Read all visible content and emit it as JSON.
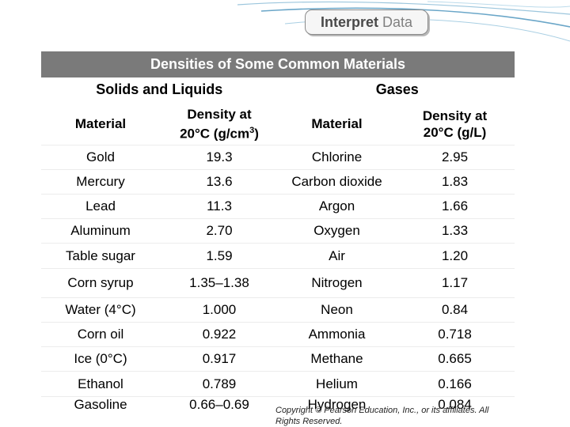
{
  "badge": {
    "word1": "Interpret",
    "word2": "Data"
  },
  "table": {
    "caption": "Densities of Some Common Materials",
    "group_left": "Solids and Liquids",
    "group_right": "Gases",
    "headers": {
      "material_left": "Material",
      "density_left_line1": "Density at",
      "density_left_line2a": "20°C (g/cm",
      "density_left_sup": "3",
      "density_left_line2b": ")",
      "material_right": "Material",
      "density_right_line1": "Density at",
      "density_right_line2": "20°C (g/L)"
    },
    "rows": [
      {
        "solid": "Gold",
        "solid_density": "19.3",
        "gas": "Chlorine",
        "gas_density": "2.95"
      },
      {
        "solid": "Mercury",
        "solid_density": "13.6",
        "gas": "Carbon dioxide",
        "gas_density": "1.83"
      },
      {
        "solid": "Lead",
        "solid_density": "11.3",
        "gas": "Argon",
        "gas_density": "1.66"
      },
      {
        "solid": "Aluminum",
        "solid_density": "2.70",
        "gas": "Oxygen",
        "gas_density": "1.33"
      },
      {
        "solid": "Table sugar",
        "solid_density": "1.59",
        "gas": "Air",
        "gas_density": "1.20"
      },
      {
        "solid": "Corn syrup",
        "solid_density": "1.35–1.38",
        "gas": "Nitrogen",
        "gas_density": "1.17"
      },
      {
        "solid": "Water (4°C)",
        "solid_density": "1.000",
        "gas": "Neon",
        "gas_density": "0.84"
      },
      {
        "solid": "Corn oil",
        "solid_density": "0.922",
        "gas": "Ammonia",
        "gas_density": "0.718"
      },
      {
        "solid": "Ice (0°C)",
        "solid_density": "0.917",
        "gas": "Methane",
        "gas_density": "0.665"
      },
      {
        "solid": "Ethanol",
        "solid_density": "0.789",
        "gas": "Helium",
        "gas_density": "0.166"
      },
      {
        "solid": "Gasoline",
        "solid_density": "0.66–0.69",
        "gas": "Hydrogen",
        "gas_density": "0.084"
      }
    ]
  },
  "copyright": "Copyright © Pearson Education, Inc., or its affiliates. All Rights Reserved.",
  "colors": {
    "caption_bg": "#7a7a7a",
    "swoosh": "#6aa6c8"
  }
}
